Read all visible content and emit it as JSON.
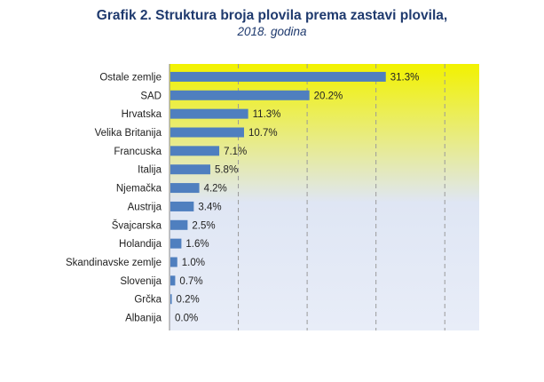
{
  "title": {
    "line1": "Grafik 2. Struktura broja plovila prema zastavi plovila,",
    "line2": "2018. godina"
  },
  "colors": {
    "bar": "#4f7fbf",
    "bg_top": "#f2f200",
    "bg_bottom": "#dfe6f4",
    "gridline": "#9a9a9a",
    "title": "#1f3a6e"
  },
  "chart_data": {
    "type": "bar",
    "orientation": "horizontal",
    "title": "Grafik 2. Struktura broja plovila prema zastavi plovila, 2018. godina",
    "categories": [
      "Ostale zemlje",
      "SAD",
      "Hrvatska",
      "Velika Britanija",
      "Francuska",
      "Italija",
      "Njemačka",
      "Austrija",
      "Švajcarska",
      "Holandija",
      "Skandinavske zemlje",
      "Slovenija",
      "Grčka",
      "Albanija"
    ],
    "values": [
      31.3,
      20.2,
      11.3,
      10.7,
      7.1,
      5.8,
      4.2,
      3.4,
      2.5,
      1.6,
      1.0,
      0.7,
      0.2,
      0.0
    ],
    "value_labels": [
      "31.3%",
      "20.2%",
      "11.3%",
      "10.7%",
      "7.1%",
      "5.8%",
      "4.2%",
      "3.4%",
      "2.5%",
      "1.6%",
      "1.0%",
      "0.7%",
      "0.2%",
      "0.0%"
    ],
    "xlim": [
      0,
      45
    ],
    "gridline_step": 10,
    "grid": true,
    "grid_style": "dashed vertical",
    "legend": "none",
    "xlabel": "",
    "ylabel": ""
  }
}
